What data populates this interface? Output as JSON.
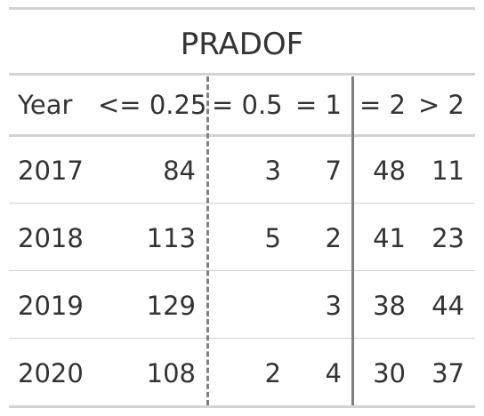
{
  "table": {
    "title": "PRADOF",
    "headers": [
      "Year",
      "<= 0.25",
      "= 0.5",
      "= 1",
      "= 2",
      "> 2"
    ],
    "rows": [
      [
        "2017",
        "84",
        "3",
        "7",
        "48",
        "11"
      ],
      [
        "2018",
        "113",
        "5",
        "2",
        "41",
        "23"
      ],
      [
        "2019",
        "129",
        "",
        "3",
        "38",
        "44"
      ],
      [
        "2020",
        "108",
        "2",
        "4",
        "30",
        "37"
      ]
    ]
  }
}
